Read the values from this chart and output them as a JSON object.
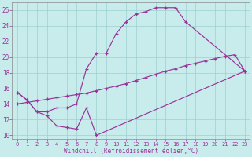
{
  "xlabel": "Windchill (Refroidissement éolien,°C)",
  "bg_color": "#c8ecec",
  "grid_color": "#9ecece",
  "line_color": "#993399",
  "xlim": [
    -0.5,
    23.5
  ],
  "ylim": [
    9.5,
    27
  ],
  "xticks": [
    0,
    1,
    2,
    3,
    4,
    5,
    6,
    7,
    8,
    9,
    10,
    11,
    12,
    13,
    14,
    15,
    16,
    17,
    18,
    19,
    20,
    21,
    22,
    23
  ],
  "yticks": [
    10,
    12,
    14,
    16,
    18,
    20,
    22,
    24,
    26
  ],
  "line1_x": [
    0,
    1,
    2,
    3,
    4,
    5,
    6,
    7,
    8,
    23
  ],
  "line1_y": [
    15.5,
    14.5,
    13.0,
    12.5,
    11.2,
    11.0,
    10.8,
    13.5,
    10.0,
    18.2
  ],
  "line2_x": [
    0,
    1,
    2,
    3,
    4,
    5,
    6,
    7,
    8,
    9,
    10,
    11,
    12,
    13,
    14,
    15,
    16,
    17,
    23
  ],
  "line2_y": [
    15.5,
    14.5,
    13.0,
    13.0,
    13.5,
    13.5,
    14.0,
    18.5,
    20.5,
    20.5,
    23.0,
    24.5,
    25.5,
    25.8,
    26.3,
    26.3,
    26.3,
    24.5,
    18.2
  ],
  "line3_x": [
    0,
    1,
    2,
    3,
    4,
    5,
    6,
    7,
    8,
    9,
    10,
    11,
    12,
    13,
    14,
    15,
    16,
    17,
    18,
    19,
    20,
    21,
    22,
    23
  ],
  "line3_y": [
    14.0,
    14.2,
    14.4,
    14.6,
    14.8,
    15.0,
    15.2,
    15.4,
    15.7,
    16.0,
    16.3,
    16.6,
    17.0,
    17.4,
    17.8,
    18.2,
    18.5,
    18.9,
    19.2,
    19.5,
    19.8,
    20.1,
    20.3,
    18.2
  ]
}
